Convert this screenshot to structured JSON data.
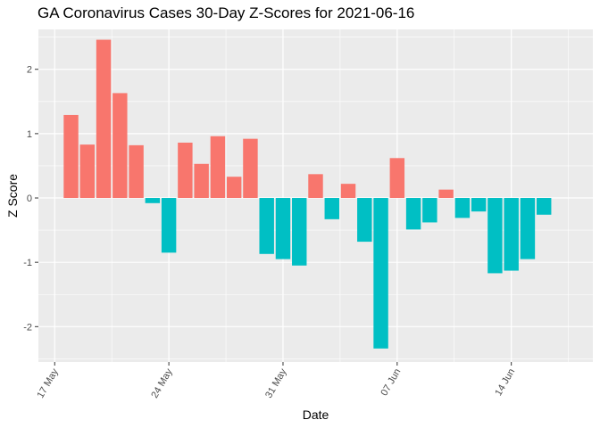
{
  "chart_data": {
    "type": "bar",
    "title": "GA Coronavirus Cases 30-Day Z-Scores for 2021-06-16",
    "xlabel": "Date",
    "ylabel": "Z Score",
    "ylim": [
      -2.55,
      2.62
    ],
    "yticks": [
      -2,
      -1,
      0,
      1,
      2
    ],
    "date_range_days": [
      -1.0,
      33.0
    ],
    "xticks": [
      {
        "label": "17 May",
        "day": 0
      },
      {
        "label": "24 May",
        "day": 7
      },
      {
        "label": "31 May",
        "day": 14
      },
      {
        "label": "07 Jun",
        "day": 21
      },
      {
        "label": "14 Jun",
        "day": 28
      }
    ],
    "x_minor_days": [
      3.5,
      10.5,
      17.5,
      24.5,
      31.5
    ],
    "positive_color": "#F8766D",
    "negative_color": "#00BFC4",
    "panel_bg": "#EBEBEB",
    "grid_color": "#FFFFFF",
    "dates": [
      "2021-05-18",
      "2021-05-19",
      "2021-05-20",
      "2021-05-21",
      "2021-05-22",
      "2021-05-23",
      "2021-05-24",
      "2021-05-25",
      "2021-05-26",
      "2021-05-27",
      "2021-05-28",
      "2021-05-29",
      "2021-05-30",
      "2021-05-31",
      "2021-06-01",
      "2021-06-02",
      "2021-06-03",
      "2021-06-04",
      "2021-06-05",
      "2021-06-06",
      "2021-06-07",
      "2021-06-08",
      "2021-06-09",
      "2021-06-10",
      "2021-06-11",
      "2021-06-12",
      "2021-06-13",
      "2021-06-14",
      "2021-06-15",
      "2021-06-16"
    ],
    "values": [
      1.29,
      0.83,
      2.46,
      1.63,
      0.82,
      -0.08,
      -0.85,
      0.86,
      0.53,
      0.96,
      0.33,
      0.92,
      -0.87,
      -0.95,
      -1.05,
      0.37,
      -0.33,
      0.22,
      -0.68,
      -2.34,
      0.62,
      -0.49,
      -0.38,
      0.13,
      -0.31,
      -0.21,
      -1.17,
      -1.13,
      -0.95,
      -0.26
    ]
  }
}
